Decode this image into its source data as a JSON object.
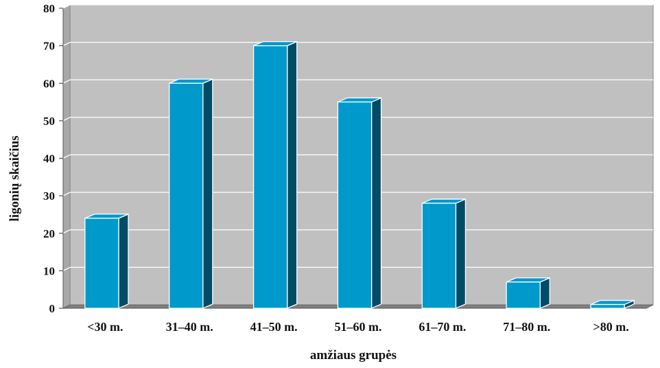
{
  "chart_data": {
    "type": "bar",
    "title": "",
    "xlabel": "amžiaus grupės",
    "ylabel": "ligonių  skaičius",
    "categories": [
      "<30 m.",
      "31–40 m.",
      "41–50 m.",
      "51–60 m.",
      "61–70 m.",
      "71–80 m.",
      ">80 m."
    ],
    "values": [
      24,
      60,
      70,
      55,
      28,
      7,
      1
    ],
    "ylim": [
      0,
      80
    ],
    "yticks": [
      "0",
      "10",
      "20",
      "30",
      "40",
      "50",
      "60",
      "70",
      "80"
    ],
    "grid": true,
    "legend": "none",
    "style": "3d-column"
  },
  "colors": {
    "plot_background": "#c0c0c0",
    "bar_front": "#0099cc",
    "bar_side": "#004c66",
    "bar_top": "#0099cc",
    "bar_outline": "#ffffff",
    "gridline": "#ffffff",
    "floor": "#808080"
  }
}
